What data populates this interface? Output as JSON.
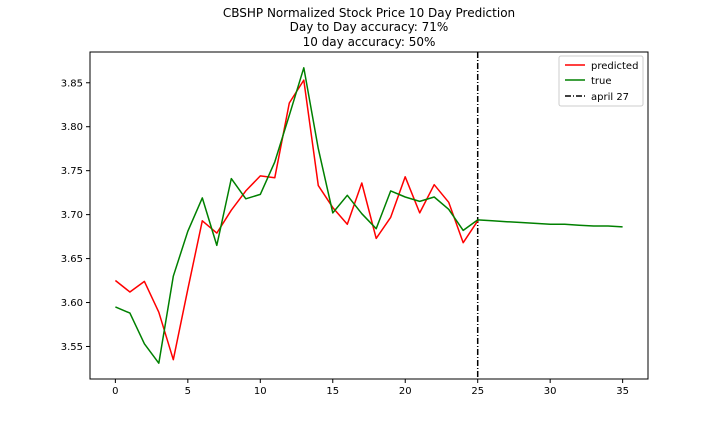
{
  "chart_data": {
    "type": "line",
    "title_lines": [
      "CBSHP Normalized Stock Price 10 Day Prediction",
      "Day to Day accuracy: 71%",
      "10 day accuracy: 50%"
    ],
    "xlabel": "",
    "ylabel": "",
    "xlim": [
      -1.75,
      36.75
    ],
    "ylim": [
      3.513,
      3.885
    ],
    "x_ticks": [
      0,
      5,
      10,
      15,
      20,
      25,
      30,
      35
    ],
    "y_ticks": [
      3.55,
      3.6,
      3.65,
      3.7,
      3.75,
      3.8,
      3.85
    ],
    "y_tick_labels": [
      "3.55",
      "3.60",
      "3.65",
      "3.70",
      "3.75",
      "3.80",
      "3.85"
    ],
    "grid": false,
    "legend_position": "top-right",
    "series": [
      {
        "name": "predicted",
        "color": "#ff0000",
        "x": [
          0,
          1,
          2,
          3,
          4,
          5,
          6,
          7,
          8,
          9,
          10,
          11,
          12,
          13,
          14,
          15,
          16,
          17,
          18,
          19,
          20,
          21,
          22,
          23,
          24,
          25
        ],
        "y": [
          3.625,
          3.612,
          3.624,
          3.589,
          3.535,
          3.615,
          3.693,
          3.679,
          3.705,
          3.727,
          3.744,
          3.742,
          3.827,
          3.853,
          3.733,
          3.708,
          3.689,
          3.736,
          3.673,
          3.697,
          3.743,
          3.702,
          3.734,
          3.714,
          3.668,
          3.693
        ]
      },
      {
        "name": "true",
        "color": "#008000",
        "x": [
          0,
          1,
          2,
          3,
          4,
          5,
          6,
          7,
          8,
          9,
          10,
          11,
          12,
          13,
          14,
          15,
          16,
          17,
          18,
          19,
          20,
          21,
          22,
          23,
          24,
          25,
          26,
          27,
          28,
          29,
          30,
          31,
          32,
          33,
          34,
          35
        ],
        "y": [
          3.595,
          3.588,
          3.553,
          3.531,
          3.63,
          3.681,
          3.719,
          3.665,
          3.741,
          3.718,
          3.723,
          3.76,
          3.813,
          3.867,
          3.775,
          3.702,
          3.722,
          3.701,
          3.684,
          3.727,
          3.72,
          3.715,
          3.72,
          3.706,
          3.682,
          3.694,
          3.693,
          3.692,
          3.691,
          3.69,
          3.689,
          3.689,
          3.688,
          3.687,
          3.687,
          3.686
        ]
      }
    ],
    "vlines": [
      {
        "name": "april 27",
        "x": 25,
        "color": "#000000",
        "style": "dashdot"
      }
    ]
  }
}
